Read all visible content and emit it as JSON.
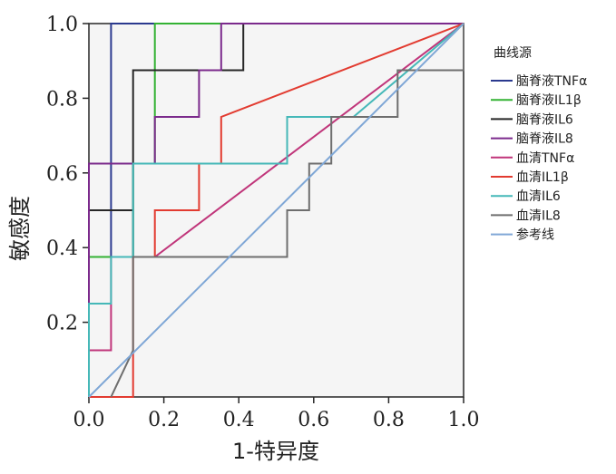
{
  "chart_data": {
    "type": "line",
    "xlabel": "1-特异度",
    "ylabel": "敏感度",
    "xlim": [
      0,
      1
    ],
    "ylim": [
      0,
      1
    ],
    "x_ticks": [
      "0.0",
      "0.2",
      "0.4",
      "0.6",
      "0.8",
      "1.0"
    ],
    "y_ticks": [
      "0.2",
      "0.4",
      "0.6",
      "0.8",
      "1.0"
    ],
    "legend": {
      "title": "曲线源",
      "position": "right"
    },
    "series": [
      {
        "name": "脑脊液TNFα",
        "color": "#2b3a8f",
        "points": [
          [
            0,
            0
          ],
          [
            0,
            0.375
          ],
          [
            0.059,
            0.375
          ],
          [
            0.059,
            1.0
          ],
          [
            1.0,
            1.0
          ]
        ]
      },
      {
        "name": "脑脊液IL1β",
        "color": "#33b233",
        "points": [
          [
            0,
            0
          ],
          [
            0,
            0.375
          ],
          [
            0.118,
            0.375
          ],
          [
            0.118,
            0.625
          ],
          [
            0.176,
            0.625
          ],
          [
            0.176,
            1.0
          ],
          [
            1.0,
            1.0
          ]
        ]
      },
      {
        "name": "脑脊液IL6",
        "color": "#262626",
        "points": [
          [
            0,
            0
          ],
          [
            0,
            0.5
          ],
          [
            0.118,
            0.5
          ],
          [
            0.118,
            0.375
          ],
          [
            0.118,
            0.875
          ],
          [
            0.412,
            0.875
          ],
          [
            0.412,
            1.0
          ],
          [
            1.0,
            1.0
          ]
        ]
      },
      {
        "name": "脑脊液IL8",
        "color": "#7b2a8c",
        "points": [
          [
            0,
            0
          ],
          [
            0,
            0.625
          ],
          [
            0.176,
            0.625
          ],
          [
            0.176,
            0.75
          ],
          [
            0.294,
            0.75
          ],
          [
            0.294,
            0.875
          ],
          [
            0.353,
            0.875
          ],
          [
            0.353,
            1.0
          ],
          [
            1.0,
            1.0
          ]
        ]
      },
      {
        "name": "血清TNFα",
        "color": "#c0357a",
        "points": [
          [
            0,
            0
          ],
          [
            0,
            0.125
          ],
          [
            0.059,
            0.125
          ],
          [
            0.059,
            0.375
          ],
          [
            0.176,
            0.375
          ],
          [
            1.0,
            1.0
          ]
        ]
      },
      {
        "name": "血清IL1β",
        "color": "#e23b30",
        "points": [
          [
            0,
            0
          ],
          [
            0.118,
            0
          ],
          [
            0.118,
            0.125
          ],
          [
            0.118,
            0.375
          ],
          [
            0.176,
            0.375
          ],
          [
            0.176,
            0.5
          ],
          [
            0.294,
            0.5
          ],
          [
            0.294,
            0.625
          ],
          [
            0.353,
            0.625
          ],
          [
            0.353,
            0.75
          ],
          [
            1.0,
            1.0
          ]
        ]
      },
      {
        "name": "血清IL6",
        "color": "#45b8b8",
        "points": [
          [
            0,
            0
          ],
          [
            0,
            0.25
          ],
          [
            0.059,
            0.25
          ],
          [
            0.059,
            0.375
          ],
          [
            0.118,
            0.375
          ],
          [
            0.118,
            0.625
          ],
          [
            0.529,
            0.625
          ],
          [
            0.529,
            0.75
          ],
          [
            0.706,
            0.75
          ],
          [
            1.0,
            1.0
          ]
        ]
      },
      {
        "name": "血清IL8",
        "color": "#6e6e6e",
        "points": [
          [
            0.059,
            0
          ],
          [
            0.118,
            0.125
          ],
          [
            0.118,
            0.375
          ],
          [
            0.529,
            0.375
          ],
          [
            0.529,
            0.5
          ],
          [
            0.588,
            0.5
          ],
          [
            0.588,
            0.625
          ],
          [
            0.647,
            0.625
          ],
          [
            0.647,
            0.75
          ],
          [
            0.824,
            0.75
          ],
          [
            0.824,
            0.875
          ],
          [
            1.0,
            0.875
          ],
          [
            1.0,
            1.0
          ]
        ]
      },
      {
        "name": "参考线",
        "color": "#7fa7d6",
        "points": [
          [
            0,
            0
          ],
          [
            1,
            1
          ]
        ]
      }
    ]
  }
}
